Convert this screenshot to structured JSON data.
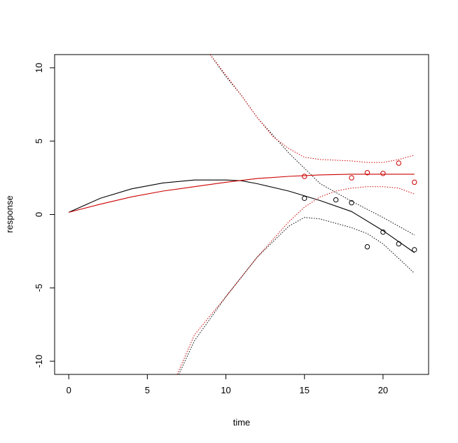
{
  "chart_data": {
    "type": "line",
    "title": "",
    "xlabel": "time",
    "ylabel": "response",
    "xlim": [
      -0.9,
      22.9
    ],
    "ylim": [
      -10.9,
      10.9
    ],
    "xticks": [
      0,
      5,
      10,
      15,
      20
    ],
    "yticks": [
      -10,
      -5,
      0,
      5,
      10
    ],
    "grid": false,
    "legend": "none",
    "colors": {
      "black": "#000000",
      "red": "#cc0000"
    },
    "series": [
      {
        "color": "black",
        "fit": {
          "x": [
            0,
            2,
            4,
            6,
            8,
            10,
            11,
            12,
            14,
            16,
            18,
            20,
            22
          ],
          "y": [
            0.15,
            1.1,
            1.75,
            2.15,
            2.35,
            2.35,
            2.3,
            2.1,
            1.6,
            0.95,
            0.2,
            -1.1,
            -2.6
          ]
        },
        "lower": {
          "x": [
            7,
            8,
            10,
            12,
            14,
            15,
            16,
            17,
            18,
            19,
            20,
            21,
            22
          ],
          "y": [
            -10.9,
            -8.6,
            -5.6,
            -2.9,
            -0.8,
            -0.2,
            -0.3,
            -0.6,
            -0.9,
            -1.3,
            -2.0,
            -3.0,
            -4.0
          ]
        },
        "upper": {
          "x": [
            9,
            10,
            11,
            12,
            14,
            16,
            18,
            20,
            22
          ],
          "y": [
            10.9,
            9.4,
            8.1,
            6.6,
            4.2,
            2.1,
            0.9,
            -0.2,
            -1.4
          ]
        },
        "points": {
          "x": [
            15,
            17,
            18,
            19,
            20,
            21,
            22
          ],
          "y": [
            1.1,
            1.0,
            0.8,
            -2.2,
            -1.2,
            -2.0,
            -2.4
          ]
        }
      },
      {
        "color": "red",
        "fit": {
          "x": [
            0,
            2,
            4,
            6,
            8,
            10,
            12,
            14,
            16,
            18,
            20,
            22
          ],
          "y": [
            0.15,
            0.7,
            1.2,
            1.6,
            1.9,
            2.2,
            2.45,
            2.6,
            2.7,
            2.75,
            2.75,
            2.75
          ]
        },
        "lower": {
          "x": [
            6.9,
            8,
            10,
            12,
            14,
            15,
            16,
            17,
            18,
            19,
            20,
            21,
            22
          ],
          "y": [
            -10.9,
            -8.2,
            -5.6,
            -2.9,
            -0.5,
            0.5,
            1.2,
            1.6,
            1.8,
            1.9,
            1.9,
            1.8,
            1.4
          ]
        },
        "upper": {
          "x": [
            9,
            10,
            11,
            12,
            13,
            14,
            15,
            16,
            17,
            18,
            19,
            20,
            21,
            22
          ],
          "y": [
            10.9,
            9.5,
            8.1,
            6.6,
            5.3,
            4.5,
            3.9,
            3.75,
            3.7,
            3.65,
            3.55,
            3.55,
            3.75,
            4.05
          ]
        },
        "points": {
          "x": [
            15,
            18,
            19,
            20,
            21,
            22
          ],
          "y": [
            2.6,
            2.5,
            2.85,
            2.8,
            3.5,
            2.2
          ]
        }
      }
    ]
  }
}
